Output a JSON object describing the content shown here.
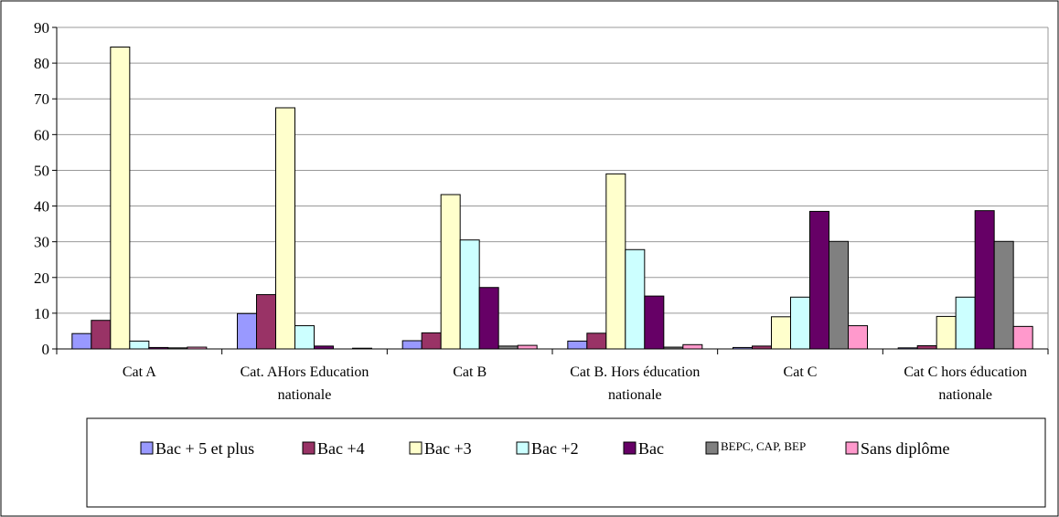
{
  "chart_data": {
    "type": "bar",
    "title": "",
    "xlabel": "",
    "ylabel": "",
    "ylim": [
      0,
      90
    ],
    "yticks": [
      0,
      10,
      20,
      30,
      40,
      50,
      60,
      70,
      80,
      90
    ],
    "grid": true,
    "legend_position": "bottom",
    "categories": [
      [
        "Cat A"
      ],
      [
        "Cat. AHors Education",
        "nationale"
      ],
      [
        "Cat B"
      ],
      [
        "Cat B. Hors éducation",
        "nationale"
      ],
      [
        "Cat C"
      ],
      [
        "Cat C hors éducation",
        "nationale"
      ]
    ],
    "series": [
      {
        "name": "Bac + 5 et plus",
        "color": "#9999ff",
        "values": [
          4.3,
          9.9,
          2.3,
          2.2,
          0.4,
          0.3
        ]
      },
      {
        "name": "Bac +4",
        "color": "#993366",
        "values": [
          8.0,
          15.2,
          4.5,
          4.4,
          0.8,
          0.9
        ]
      },
      {
        "name": "Bac +3",
        "color": "#ffffcc",
        "values": [
          84.5,
          67.5,
          43.2,
          49.0,
          9.0,
          9.1
        ]
      },
      {
        "name": "Bac +2",
        "color": "#ccffff",
        "values": [
          2.2,
          6.5,
          30.5,
          27.8,
          14.5,
          14.5
        ]
      },
      {
        "name": "Bac",
        "color": "#660066",
        "values": [
          0.4,
          0.8,
          17.2,
          14.8,
          38.5,
          38.7
        ]
      },
      {
        "name": "BEPC, CAP, BEP",
        "color": "#808080",
        "values": [
          0.3,
          0.0,
          0.8,
          0.5,
          30.1,
          30.1
        ]
      },
      {
        "name": "Sans diplôme",
        "color": "#ff99cc",
        "values": [
          0.5,
          0.2,
          1.0,
          1.2,
          6.5,
          6.3
        ]
      }
    ]
  }
}
